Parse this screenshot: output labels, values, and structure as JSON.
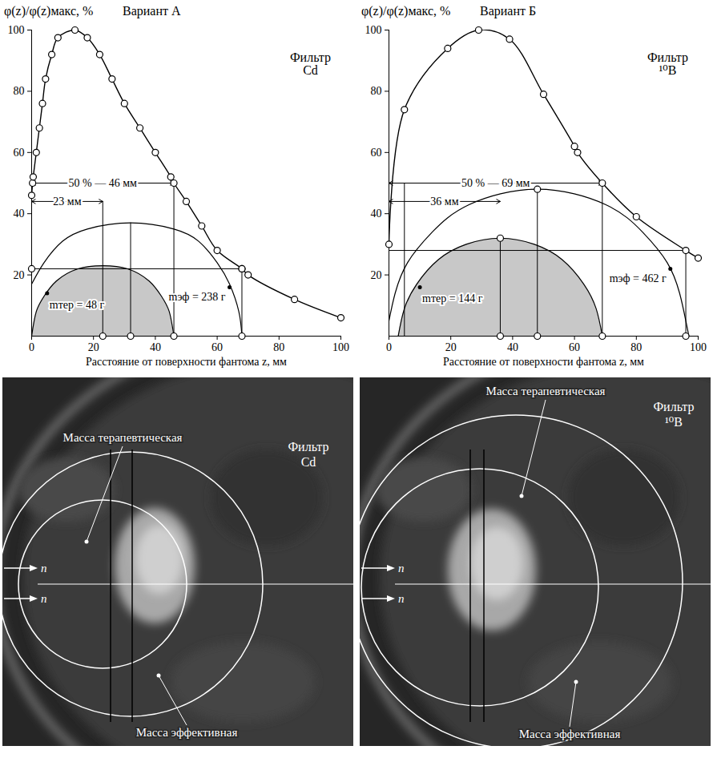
{
  "chart_data": [
    {
      "type": "line",
      "title": "Вариант А",
      "y_label": "φ(z)/φ(z)макс, %",
      "x_label": "Расстояние от поверхности фантома z, мм",
      "filter_label": [
        "Фильтр",
        "Cd"
      ],
      "color": "#000000",
      "marker": "circle",
      "x": [
        0,
        0.3,
        0.5,
        1.5,
        2.5,
        3.5,
        4.5,
        6.5,
        8.5,
        14,
        18,
        22,
        26,
        30,
        35,
        40,
        45,
        46,
        50,
        55,
        60,
        68,
        70,
        85,
        100
      ],
      "values": [
        46,
        50,
        52,
        60,
        68,
        76,
        84,
        92,
        97.5,
        100,
        97.5,
        92,
        84,
        76,
        68,
        60,
        52,
        50,
        44,
        36,
        28,
        22,
        20,
        12,
        6
      ],
      "xlim": [
        0,
        100
      ],
      "ylim": [
        0,
        100
      ],
      "xticks": [
        0,
        20,
        40,
        60,
        80,
        100
      ],
      "yticks": [
        20,
        40,
        60,
        80,
        100
      ],
      "h_lines": [
        {
          "y": 22,
          "x_start": 0,
          "x_end": 68
        }
      ],
      "v_lines": [
        {
          "x": 23,
          "y_start": 0,
          "y_end": 44
        },
        {
          "x": 32,
          "y_start": 0,
          "y_end": 37
        },
        {
          "x": 46,
          "y_start": 0,
          "y_end": 50
        },
        {
          "x": 68,
          "y_start": 0,
          "y_end": 22
        }
      ],
      "dimension_arrows": [
        {
          "text": "50 % — 46 мм",
          "y": 50,
          "x_start": 0,
          "x_end": 46
        },
        {
          "text": "23 мм",
          "y": 44,
          "x_start": 0,
          "x_end": 23
        }
      ],
      "arcs": [
        {
          "label": "mтер = 48 г",
          "fill": "#c8c8c8",
          "label_point": [
            5,
            14
          ],
          "x": [
            0,
            1.5,
            4,
            8,
            15,
            23,
            31,
            38,
            42,
            44.5,
            46
          ],
          "y": [
            0,
            8,
            13,
            18,
            22,
            23,
            22,
            18,
            13,
            8,
            0
          ]
        },
        {
          "label": "mэф = 238 г",
          "fill": "none",
          "label_point": [
            64,
            16
          ],
          "x": [
            0,
            4,
            10,
            18,
            32,
            46,
            54,
            60,
            64,
            67,
            68
          ],
          "y": [
            17,
            24,
            31,
            35,
            37,
            35,
            31,
            24,
            17,
            8,
            0
          ]
        }
      ],
      "marker_points": [
        [
          0,
          22
        ],
        [
          68,
          22
        ],
        [
          23,
          0
        ],
        [
          32,
          0
        ],
        [
          46,
          0
        ],
        [
          68,
          0
        ]
      ]
    },
    {
      "type": "line",
      "title": "Вариант Б",
      "y_label": "φ(z)/φ(z)макс, %",
      "x_label": "Расстояние от поверхности фантома z, мм",
      "filter_label": [
        "Фильтр",
        "¹⁰B"
      ],
      "color": "#000000",
      "marker": "circle",
      "x": [
        0,
        5,
        19,
        29,
        39,
        50,
        60,
        61,
        69,
        80,
        96,
        100
      ],
      "values": [
        30,
        74,
        94,
        100,
        97,
        79,
        62,
        60,
        50,
        39,
        28,
        25.5
      ],
      "xlim": [
        0,
        100
      ],
      "ylim": [
        0,
        100
      ],
      "xticks": [
        0,
        20,
        40,
        60,
        80,
        100
      ],
      "yticks": [
        20,
        40,
        60,
        80,
        100
      ],
      "h_lines": [
        {
          "y": 28,
          "x_start": 0,
          "x_end": 96
        }
      ],
      "v_lines": [
        {
          "x": 5,
          "y_start": 0,
          "y_end": 50
        },
        {
          "x": 36,
          "y_start": 0,
          "y_end": 32
        },
        {
          "x": 48,
          "y_start": 0,
          "y_end": 48
        },
        {
          "x": 69,
          "y_start": 0,
          "y_end": 50
        },
        {
          "x": 96,
          "y_start": 0,
          "y_end": 28
        }
      ],
      "dimension_arrows": [
        {
          "text": "50 % — 69 мм",
          "y": 50,
          "x_start": 0,
          "x_end": 69
        },
        {
          "text": "36 мм",
          "y": 44,
          "x_start": 0,
          "x_end": 36
        }
      ],
      "arcs": [
        {
          "label": "mтер = 144 г",
          "fill": "#c8c8c8",
          "label_point": [
            10,
            16
          ],
          "x": [
            3,
            5,
            9,
            16,
            25,
            36,
            47,
            56,
            63,
            67,
            69
          ],
          "y": [
            0,
            9,
            17,
            25,
            30,
            32,
            30,
            25,
            17,
            9,
            0
          ]
        },
        {
          "label": "mэф = 462 г",
          "fill": "none",
          "label_point": [
            91,
            22
          ],
          "x": [
            0,
            2,
            6,
            14,
            26,
            48,
            70,
            82,
            90,
            94,
            96,
            97
          ],
          "y": [
            5,
            14,
            24,
            34,
            43,
            48,
            43,
            34,
            24,
            14,
            5,
            0
          ]
        }
      ],
      "marker_points": [
        [
          36,
          32
        ],
        [
          36,
          0
        ],
        [
          48,
          48
        ],
        [
          48,
          0
        ],
        [
          69,
          0
        ],
        [
          96,
          0
        ]
      ]
    }
  ],
  "image_panels": [
    {
      "filter_label": [
        "Фильтр",
        "Cd"
      ],
      "therapeutic_label": "Масса терапевтическая",
      "effective_label": "Масса эффективная",
      "beam_labels": [
        "n",
        "n"
      ]
    },
    {
      "filter_label": [
        "Фильтр",
        "¹⁰B"
      ],
      "therapeutic_label": "Масса терапевтическая",
      "effective_label": "Масса эффективная",
      "beam_labels": [
        "n",
        "n"
      ]
    }
  ]
}
